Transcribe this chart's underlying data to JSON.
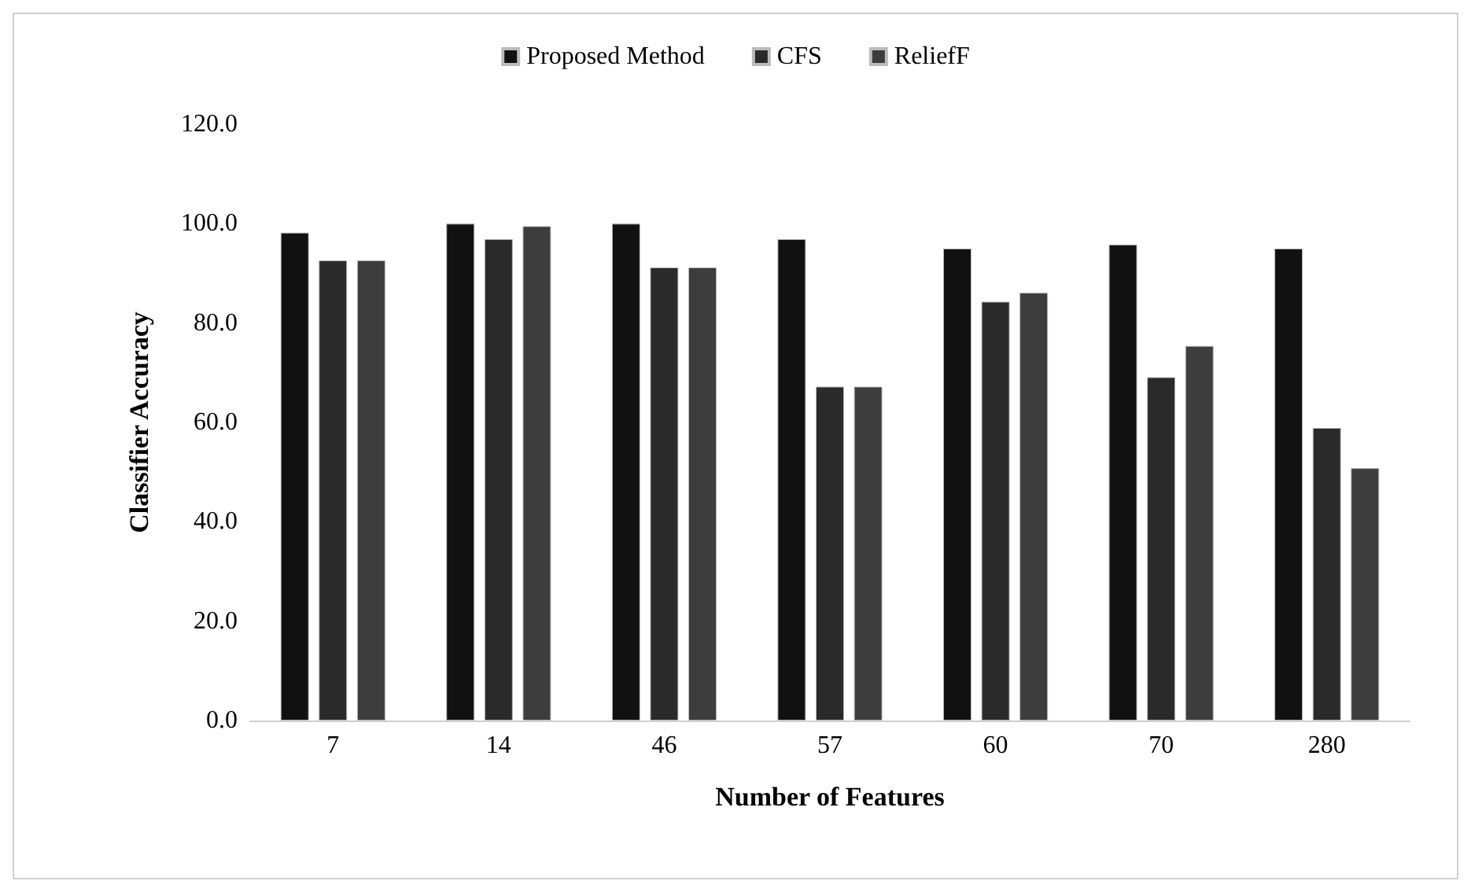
{
  "chart_data": {
    "type": "bar",
    "xlabel": "Number of Features",
    "ylabel": "Classifier Accuracy",
    "categories": [
      "7",
      "14",
      "46",
      "57",
      "60",
      "70",
      "280"
    ],
    "series": [
      {
        "name": "Proposed Method",
        "color": "#111111",
        "values": [
          98.2,
          100.0,
          100.0,
          96.9,
          95.0,
          95.8,
          95.0
        ]
      },
      {
        "name": "CFS",
        "color": "#2a2a2a",
        "values": [
          92.6,
          96.9,
          91.2,
          67.2,
          84.3,
          69.1,
          58.9
        ]
      },
      {
        "name": "ReliefF",
        "color": "#3d3d3d",
        "values": [
          92.6,
          99.5,
          91.2,
          67.2,
          86.1,
          75.4,
          50.8
        ]
      }
    ],
    "ylim": [
      0,
      120
    ],
    "yticks": [
      {
        "value": 0,
        "label": "0.0"
      },
      {
        "value": 20,
        "label": "20.0"
      },
      {
        "value": 40,
        "label": "40.0"
      },
      {
        "value": 60,
        "label": "60.0"
      },
      {
        "value": 80,
        "label": "80.0"
      },
      {
        "value": 100,
        "label": "100.0"
      },
      {
        "value": 120,
        "label": "120.0"
      }
    ],
    "grid": false,
    "legend": "top"
  }
}
